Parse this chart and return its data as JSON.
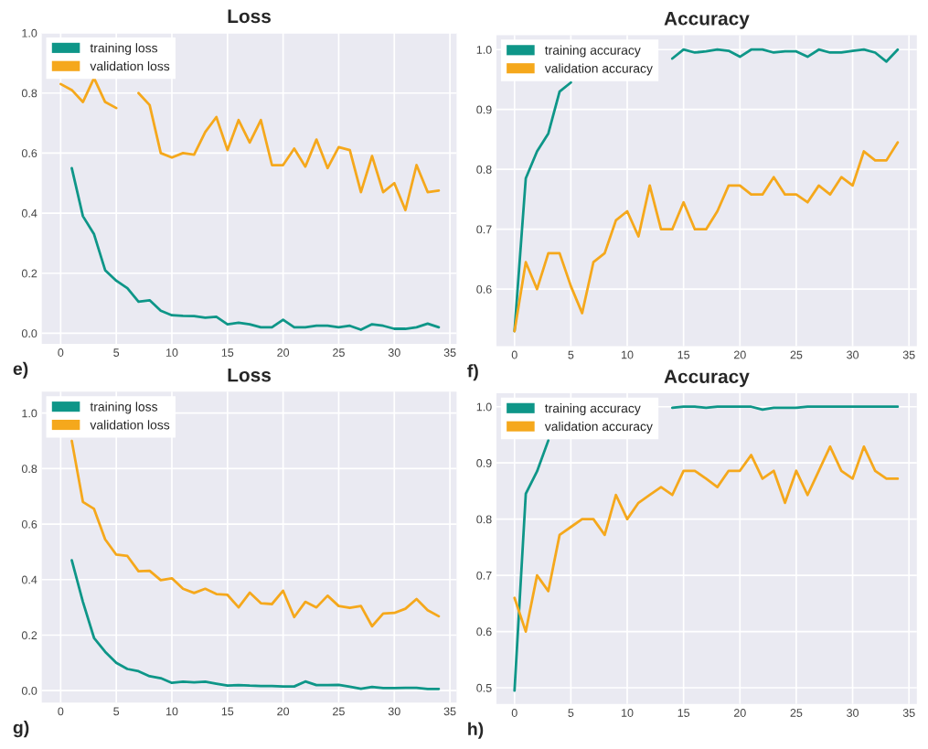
{
  "chart_data": [
    {
      "type": "line",
      "title": "Loss",
      "annotations": [
        "e)"
      ],
      "x": [
        0,
        1,
        2,
        3,
        4,
        5,
        6,
        7,
        8,
        9,
        10,
        11,
        12,
        13,
        14,
        15,
        16,
        17,
        18,
        19,
        20,
        21,
        22,
        23,
        24,
        25,
        26,
        27,
        28,
        29,
        30,
        31,
        32,
        33,
        34
      ],
      "series": [
        {
          "name": "training loss",
          "color": "#0e9688",
          "values": [
            null,
            0.55,
            0.39,
            0.33,
            0.21,
            0.175,
            0.15,
            0.105,
            0.11,
            0.075,
            0.06,
            0.058,
            0.057,
            0.052,
            0.055,
            0.03,
            0.035,
            0.03,
            0.02,
            0.02,
            0.045,
            0.02,
            0.02,
            0.025,
            0.025,
            0.02,
            0.025,
            0.012,
            0.03,
            0.025,
            0.015,
            0.015,
            0.02,
            0.032,
            0.02
          ]
        },
        {
          "name": "validation loss",
          "color": "#f5a81c",
          "values": [
            0.83,
            0.81,
            0.77,
            0.85,
            0.77,
            0.75,
            null,
            0.8,
            0.76,
            0.6,
            0.585,
            0.6,
            0.595,
            0.67,
            0.72,
            0.61,
            0.71,
            0.635,
            0.71,
            0.56,
            0.56,
            0.615,
            0.555,
            0.645,
            0.55,
            0.62,
            0.61,
            0.47,
            0.59,
            0.47,
            0.5,
            0.41,
            0.56,
            0.47,
            0.475
          ]
        }
      ],
      "xlim": [
        -1.7,
        35.6
      ],
      "ylim": [
        -0.035,
        1.0
      ],
      "xticks": [
        0,
        5,
        10,
        15,
        20,
        25,
        30,
        35
      ],
      "yticks": [
        {
          "value": 0.0,
          "label": "0.0"
        },
        {
          "value": 0.2,
          "label": "0.2"
        },
        {
          "value": 0.4,
          "label": "0.4"
        },
        {
          "value": 0.6,
          "label": "0.6"
        },
        {
          "value": 0.8,
          "label": "0.8"
        },
        {
          "value": 1.0,
          "label": "1.0"
        }
      ],
      "grid": true,
      "legend": "top left"
    },
    {
      "type": "line",
      "title": "Accuracy",
      "annotations": [
        "f)"
      ],
      "x": [
        0,
        1,
        2,
        3,
        4,
        5,
        6,
        7,
        8,
        9,
        10,
        11,
        12,
        13,
        14,
        15,
        16,
        17,
        18,
        19,
        20,
        21,
        22,
        23,
        24,
        25,
        26,
        27,
        28,
        29,
        30,
        31,
        32,
        33,
        34
      ],
      "series": [
        {
          "name": "training accuracy",
          "color": "#0e9688",
          "values": [
            0.53,
            0.785,
            0.83,
            0.86,
            0.93,
            0.945,
            null,
            null,
            null,
            null,
            null,
            null,
            null,
            null,
            0.985,
            1.0,
            0.995,
            0.997,
            1.0,
            0.998,
            0.988,
            1.0,
            1.0,
            0.995,
            0.997,
            0.997,
            0.988,
            1.0,
            0.995,
            0.995,
            0.998,
            1.0,
            0.995,
            0.98,
            1.0
          ]
        },
        {
          "name": "validation accuracy",
          "color": "#f5a81c",
          "values": [
            0.53,
            0.645,
            0.6,
            0.66,
            0.66,
            0.605,
            0.56,
            0.645,
            0.66,
            0.715,
            0.73,
            0.688,
            0.773,
            0.7,
            0.7,
            0.745,
            0.7,
            0.7,
            0.73,
            0.773,
            0.773,
            0.758,
            0.758,
            0.787,
            0.758,
            0.758,
            0.745,
            0.773,
            0.758,
            0.787,
            0.773,
            0.83,
            0.815,
            0.815,
            0.845
          ]
        }
      ],
      "xlim": [
        -1.6,
        35.7
      ],
      "ylim": [
        0.505,
        1.024
      ],
      "xticks": [
        0,
        5,
        10,
        15,
        20,
        25,
        30,
        35
      ],
      "yticks": [
        {
          "value": 0.6,
          "label": "0.6"
        },
        {
          "value": 0.7,
          "label": "0.7"
        },
        {
          "value": 0.8,
          "label": "0.8"
        },
        {
          "value": 0.9,
          "label": "0.9"
        },
        {
          "value": 1.0,
          "label": "1.0"
        }
      ],
      "grid": true,
      "legend": "top left"
    },
    {
      "type": "line",
      "title": "Loss",
      "annotations": [
        "g)"
      ],
      "x": [
        1,
        2,
        3,
        4,
        5,
        6,
        7,
        8,
        9,
        10,
        11,
        12,
        13,
        14,
        15,
        16,
        17,
        18,
        19,
        20,
        21,
        22,
        23,
        24,
        25,
        26,
        27,
        28,
        29,
        30,
        31,
        32,
        33,
        34
      ],
      "series": [
        {
          "name": "training loss",
          "color": "#0e9688",
          "values": [
            0.47,
            0.32,
            0.19,
            0.14,
            0.1,
            0.078,
            0.07,
            0.052,
            0.045,
            0.028,
            0.032,
            0.03,
            0.032,
            0.025,
            0.018,
            0.02,
            0.018,
            0.017,
            0.017,
            0.015,
            0.015,
            0.033,
            0.02,
            0.02,
            0.021,
            0.014,
            0.007,
            0.013,
            0.009,
            0.009,
            0.01,
            0.01,
            0.006,
            0.006
          ]
        },
        {
          "name": "validation loss",
          "color": "#f5a81c",
          "values": [
            0.9,
            0.68,
            0.655,
            0.545,
            0.49,
            0.485,
            0.43,
            0.432,
            0.398,
            0.405,
            0.367,
            0.352,
            0.367,
            0.348,
            0.345,
            0.3,
            0.353,
            0.315,
            0.312,
            0.36,
            0.265,
            0.32,
            0.3,
            0.342,
            0.305,
            0.298,
            0.305,
            0.232,
            0.278,
            0.28,
            0.295,
            0.33,
            0.29,
            0.268
          ]
        }
      ],
      "xlim": [
        -1.7,
        35.6
      ],
      "ylim": [
        -0.043,
        1.077
      ],
      "xticks": [
        0,
        5,
        10,
        15,
        20,
        25,
        30,
        35
      ],
      "yticks": [
        {
          "value": 0.0,
          "label": "0.0"
        },
        {
          "value": 0.2,
          "label": "0.2"
        },
        {
          "value": 0.4,
          "label": "0.4"
        },
        {
          "value": 0.6,
          "label": "0.6"
        },
        {
          "value": 0.8,
          "label": "0.8"
        },
        {
          "value": 1.0,
          "label": "1.0"
        }
      ],
      "grid": true,
      "legend": "top left"
    },
    {
      "type": "line",
      "title": "Accuracy",
      "annotations": [
        "h)"
      ],
      "x": [
        0,
        1,
        2,
        3,
        4,
        5,
        6,
        7,
        8,
        9,
        10,
        11,
        12,
        13,
        14,
        15,
        16,
        17,
        18,
        19,
        20,
        21,
        22,
        23,
        24,
        25,
        26,
        27,
        28,
        29,
        30,
        31,
        32,
        33,
        34
      ],
      "series": [
        {
          "name": "training accuracy",
          "color": "#0e9688",
          "values": [
            0.495,
            0.845,
            0.885,
            0.94,
            null,
            null,
            null,
            null,
            null,
            null,
            null,
            null,
            null,
            null,
            0.998,
            1.0,
            1.0,
            0.998,
            1.0,
            1.0,
            1.0,
            1.0,
            0.995,
            0.998,
            0.998,
            0.998,
            1.0,
            1.0,
            1.0,
            1.0,
            1.0,
            1.0,
            1.0,
            1.0,
            1.0
          ]
        },
        {
          "name": "validation accuracy",
          "color": "#f5a81c",
          "values": [
            0.66,
            0.6,
            0.7,
            0.672,
            0.772,
            0.786,
            0.8,
            0.8,
            0.772,
            0.843,
            0.8,
            0.829,
            0.843,
            0.857,
            0.843,
            0.886,
            0.886,
            0.872,
            0.857,
            0.886,
            0.886,
            0.914,
            0.872,
            0.886,
            0.829,
            0.886,
            0.843,
            0.886,
            0.929,
            0.886,
            0.872,
            0.929,
            0.886,
            0.872,
            0.872
          ]
        }
      ],
      "xlim": [
        -1.6,
        35.7
      ],
      "ylim": [
        0.471,
        1.024
      ],
      "xticks": [
        0,
        5,
        10,
        15,
        20,
        25,
        30,
        35
      ],
      "yticks": [
        {
          "value": 0.5,
          "label": "0.5"
        },
        {
          "value": 0.6,
          "label": "0.6"
        },
        {
          "value": 0.7,
          "label": "0.7"
        },
        {
          "value": 0.8,
          "label": "0.8"
        },
        {
          "value": 0.9,
          "label": "0.9"
        },
        {
          "value": 1.0,
          "label": "1.0"
        }
      ],
      "grid": true,
      "legend": "top left"
    }
  ]
}
